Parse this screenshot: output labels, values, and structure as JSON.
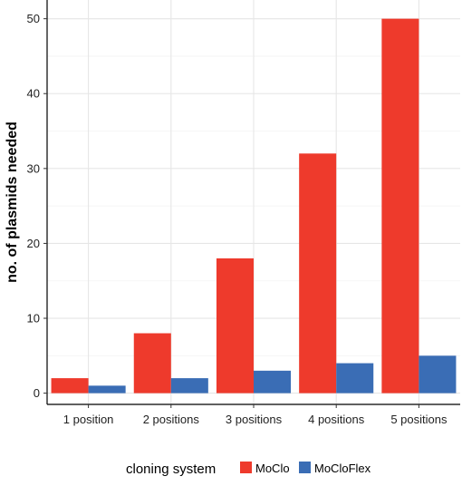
{
  "chart_data": {
    "type": "bar",
    "categories": [
      "1 position",
      "2 positions",
      "3 positions",
      "4 positions",
      "5 positions"
    ],
    "series": [
      {
        "name": "MoClo",
        "values": [
          2,
          8,
          18,
          32,
          50
        ],
        "color": "#ee3a2c"
      },
      {
        "name": "MoCloFlex",
        "values": [
          1,
          2,
          3,
          4,
          5
        ],
        "color": "#3a6db5"
      }
    ],
    "title": "",
    "xlabel": "",
    "ylabel": "no. of plasmids needed",
    "ylim": [
      -1.5,
      52.5
    ],
    "yticks": [
      0,
      10,
      20,
      30,
      40,
      50
    ],
    "grid": true,
    "legend": {
      "title": "cloning system",
      "position": "bottom"
    }
  }
}
